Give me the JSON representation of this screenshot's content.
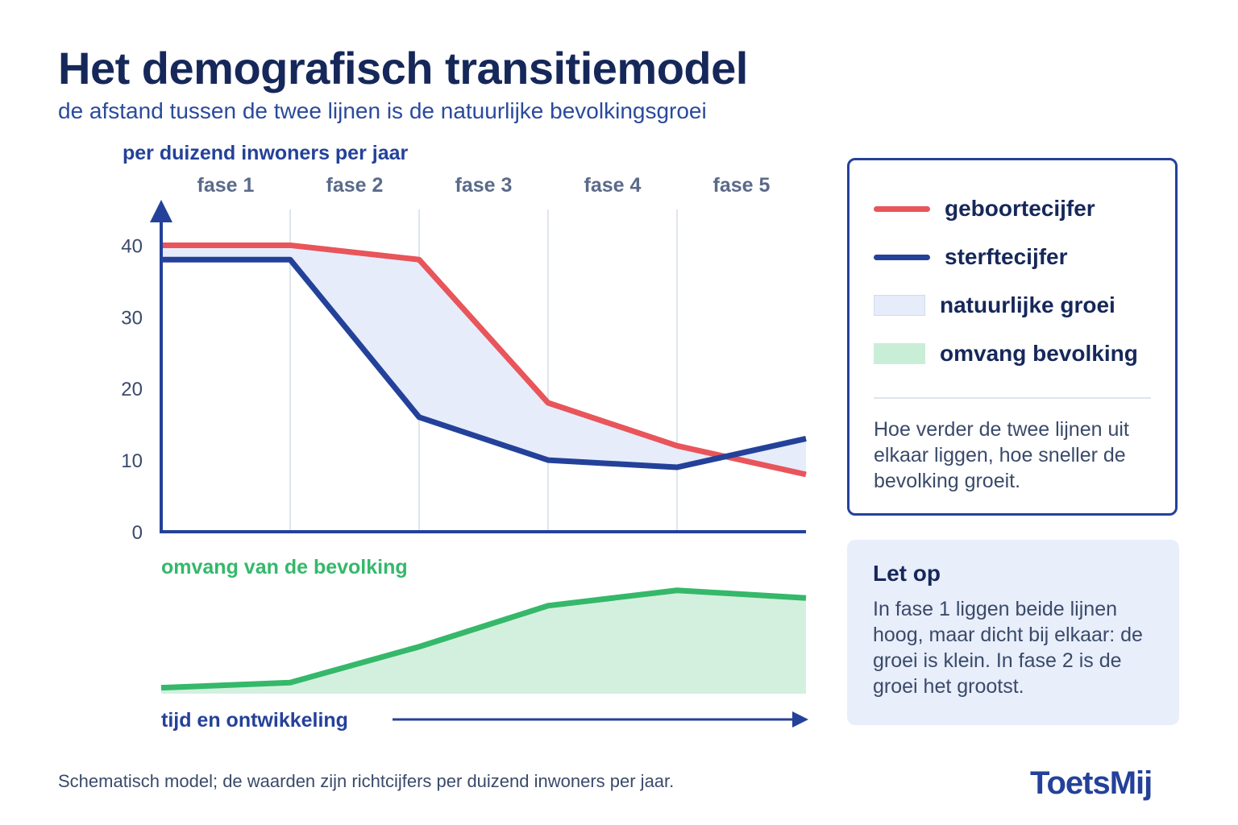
{
  "header": {
    "title": "Het demografisch transitiemodel",
    "subtitle": "de afstand tussen de twee lijnen is de natuurlijke bevolkingsgroei"
  },
  "colors": {
    "birth": "#e8555a",
    "death": "#24419a",
    "growth_fill": "#e6ecfa",
    "population_line": "#35b86a",
    "population_fill": "#d3f0de",
    "axis": "#24419a"
  },
  "chart_data": [
    {
      "type": "line",
      "ylabel": "per duizend inwoners per jaar",
      "ylim": [
        0,
        45
      ],
      "yticks": [
        0,
        10,
        20,
        30,
        40
      ],
      "grid": "vertical lines between phases",
      "phases": [
        "fase 1",
        "fase 2",
        "fase 3",
        "fase 4",
        "fase 5"
      ],
      "x": [
        0,
        1,
        2,
        3,
        4,
        5
      ],
      "series": [
        {
          "name": "geboortecijfer",
          "values": [
            40,
            40,
            38,
            18,
            12,
            8
          ]
        },
        {
          "name": "sterftecijfer",
          "values": [
            38,
            38,
            16,
            10,
            9,
            13
          ]
        }
      ],
      "fill_between_label": "natuurlijke groei"
    },
    {
      "type": "area",
      "title": "omvang van de bevolking",
      "xlabel": "tijd en ontwikkeling",
      "x": [
        0,
        1,
        2,
        3,
        4,
        5
      ],
      "series": [
        {
          "name": "omvang bevolking",
          "values": [
            1,
            2,
            9,
            17,
            20,
            18.5
          ]
        }
      ],
      "ylim": [
        0,
        22
      ]
    }
  ],
  "legend": {
    "items": [
      {
        "label": "geboortecijfer",
        "kind": "line",
        "color": "#e8555a"
      },
      {
        "label": "sterftecijfer",
        "kind": "line",
        "color": "#24419a"
      },
      {
        "label": "natuurlijke groei",
        "kind": "box",
        "color": "#e6ecfa"
      },
      {
        "label": "omvang bevolking",
        "kind": "box",
        "color": "#c9eed7"
      }
    ],
    "note": "Hoe verder de twee lijnen uit elkaar liggen, hoe sneller de bevolking groeit."
  },
  "note_box": {
    "title": "Let op",
    "text": "In fase 1 liggen beide lijnen hoog, maar dicht bij elkaar: de groei is klein. In fase 2 is de groei het grootst."
  },
  "footnote": "Schematisch model; de waarden zijn richtcijfers per duizend inwoners per jaar.",
  "logo": "ToetsMij"
}
